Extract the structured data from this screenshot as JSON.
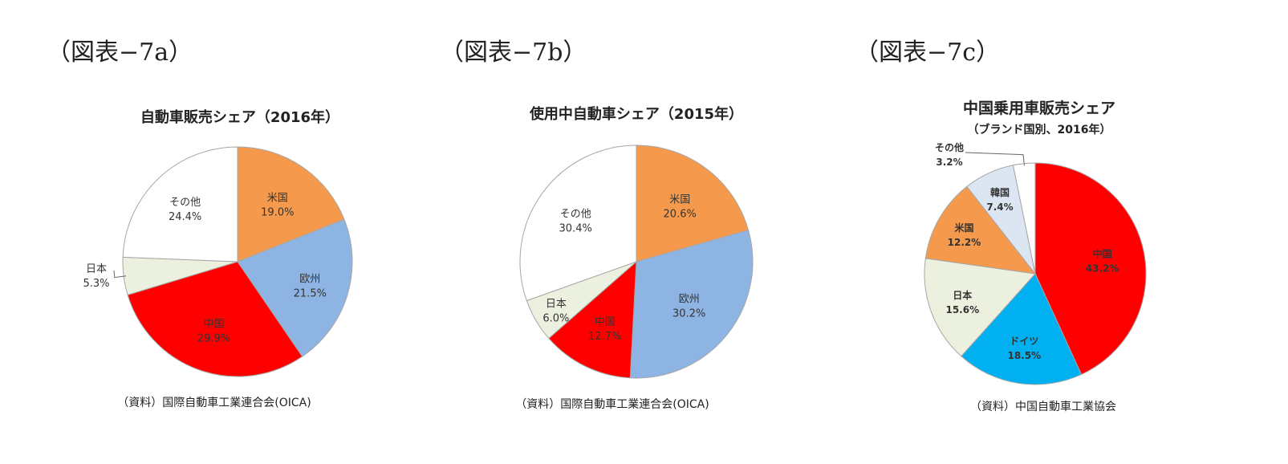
{
  "figure_labels": [
    "（図表−7a）",
    "（図表−7b）",
    "（図表−7c）"
  ],
  "chart_data": [
    {
      "type": "pie",
      "title": "自動車販売シェア（2016年）",
      "subtitle": "",
      "source": "（資料）国際自動車工業連合会(OICA)",
      "slices": [
        {
          "label": "米国",
          "value": 19.0,
          "display": "19.0%",
          "color": "#f59a4c"
        },
        {
          "label": "欧州",
          "value": 21.5,
          "display": "21.5%",
          "color": "#8eb4e3"
        },
        {
          "label": "中国",
          "value": 29.9,
          "display": "29.9%",
          "color": "#ff0000"
        },
        {
          "label": "日本",
          "value": 5.3,
          "display": "5.3%",
          "color": "#ebf1de"
        },
        {
          "label": "その他",
          "value": 24.4,
          "display": "24.4%",
          "color": "#ffffff"
        }
      ]
    },
    {
      "type": "pie",
      "title": "使用中自動車シェア（2015年）",
      "subtitle": "",
      "source": "（資料）国際自動車工業連合会(OICA)",
      "slices": [
        {
          "label": "米国",
          "value": 20.6,
          "display": "20.6%",
          "color": "#f59a4c"
        },
        {
          "label": "欧州",
          "value": 30.2,
          "display": "30.2%",
          "color": "#8eb4e3"
        },
        {
          "label": "中国",
          "value": 12.7,
          "display": "12.7%",
          "color": "#ff0000"
        },
        {
          "label": "日本",
          "value": 6.0,
          "display": "6.0%",
          "color": "#ebf1de"
        },
        {
          "label": "その他",
          "value": 30.4,
          "display": "30.4%",
          "color": "#ffffff"
        }
      ]
    },
    {
      "type": "pie",
      "title": "中国乗用車販売シェア",
      "subtitle": "（ブランド国別、2016年）",
      "source": "（資料）中国自動車工業協会",
      "slices": [
        {
          "label": "中国",
          "value": 43.2,
          "display": "43.2%",
          "color": "#ff0000"
        },
        {
          "label": "ドイツ",
          "value": 18.5,
          "display": "18.5%",
          "color": "#00b0f0"
        },
        {
          "label": "日本",
          "value": 15.6,
          "display": "15.6%",
          "color": "#ebf1de"
        },
        {
          "label": "米国",
          "value": 12.2,
          "display": "12.2%",
          "color": "#f59a4c"
        },
        {
          "label": "韓国",
          "value": 7.4,
          "display": "7.4%",
          "color": "#dce6f2"
        },
        {
          "label": "その他",
          "value": 3.2,
          "display": "3.2%",
          "color": "#ffffff"
        }
      ]
    }
  ]
}
